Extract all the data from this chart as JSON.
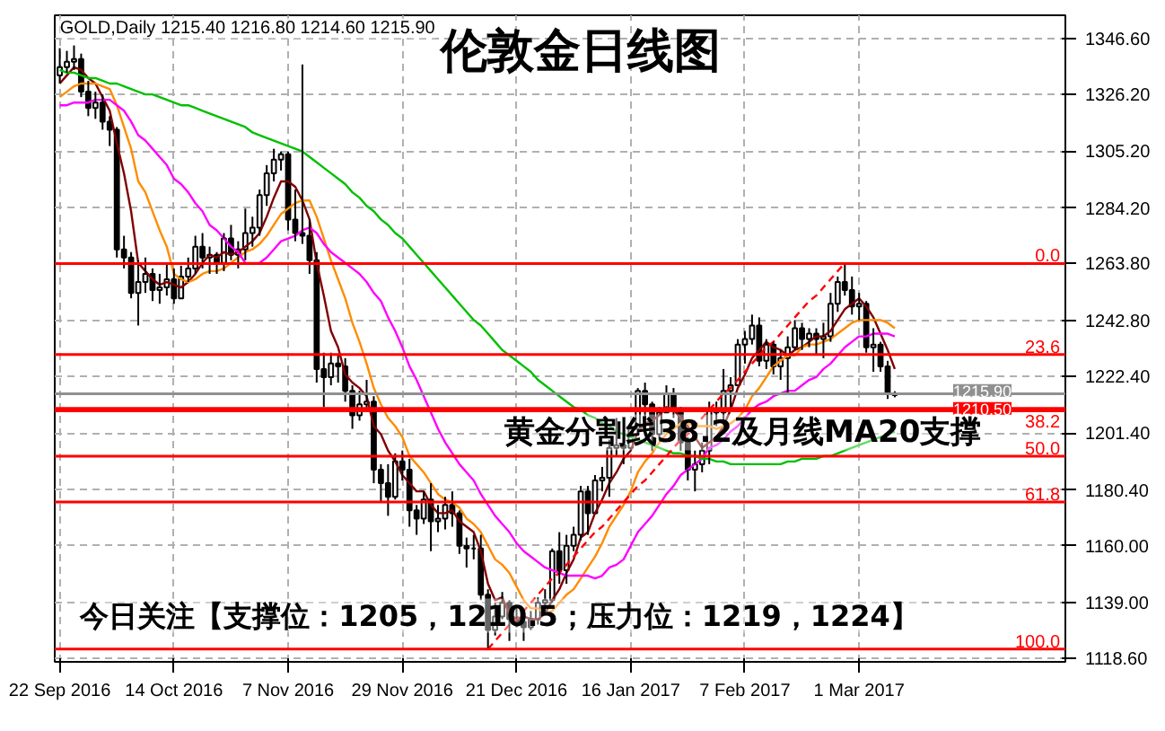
{
  "chart_data": {
    "type": "candlestick",
    "title": "伦敦金日线图",
    "subtitle": "GOLD,Daily 1215.40 1216.80 1214.60 1215.90",
    "annotations": [
      "黄金分割线38.2及月线MA20支撑",
      "今日关注【支撑位：1205，1210.5；压力位：1219，1224】",
      {
        "text": "0.0",
        "y": 1263.8
      },
      {
        "text": "23.6",
        "y": 1230.3
      },
      {
        "text": "38.2",
        "y": 1209.6
      },
      {
        "text": "50.0",
        "y": 1192.9
      },
      {
        "text": "61.8",
        "y": 1176.1
      },
      {
        "text": "100.0",
        "y": 1122.0
      }
    ],
    "categories": [
      "22 Sep 2016",
      null,
      null,
      null,
      null,
      null,
      null,
      null,
      null,
      null,
      null,
      null,
      null,
      null,
      null,
      null,
      "14 Oct 2016",
      null,
      null,
      null,
      null,
      null,
      null,
      null,
      null,
      null,
      null,
      null,
      null,
      null,
      null,
      null,
      "7 Nov 2016",
      null,
      null,
      null,
      null,
      null,
      null,
      null,
      null,
      null,
      null,
      null,
      null,
      null,
      null,
      null,
      "29 Nov 2016",
      null,
      null,
      null,
      null,
      null,
      null,
      null,
      null,
      null,
      null,
      null,
      null,
      null,
      null,
      null,
      "21 Dec 2016",
      null,
      null,
      null,
      null,
      null,
      null,
      null,
      null,
      null,
      null,
      null,
      null,
      null,
      null,
      null,
      "16 Jan 2017",
      null,
      null,
      null,
      null,
      null,
      null,
      null,
      null,
      null,
      null,
      null,
      null,
      null,
      null,
      null,
      "7 Feb 2017",
      null,
      null,
      null,
      null,
      null,
      null,
      null,
      null,
      null,
      null,
      null,
      null,
      null,
      null,
      null,
      "1 Mar 2017",
      null,
      null,
      null,
      null,
      null
    ],
    "color": "#000000",
    "ohlc": [
      [
        1333,
        1343,
        1330,
        1336
      ],
      [
        1336,
        1342,
        1334,
        1338
      ],
      [
        1338,
        1344,
        1335,
        1339
      ],
      [
        1339,
        1341,
        1325,
        1327
      ],
      [
        1327,
        1331,
        1318,
        1321
      ],
      [
        1321,
        1327,
        1317,
        1323
      ],
      [
        1323,
        1326,
        1313,
        1316
      ],
      [
        1316,
        1318,
        1307,
        1313
      ],
      [
        1313,
        1314,
        1266,
        1269
      ],
      [
        1269,
        1274,
        1262,
        1266
      ],
      [
        1266,
        1268,
        1251,
        1253
      ],
      [
        1253,
        1265,
        1241,
        1257
      ],
      [
        1257,
        1266,
        1253,
        1260
      ],
      [
        1260,
        1262,
        1250,
        1254
      ],
      [
        1254,
        1260,
        1249,
        1255
      ],
      [
        1255,
        1264,
        1252,
        1258
      ],
      [
        1258,
        1262,
        1249,
        1251
      ],
      [
        1251,
        1263,
        1251,
        1259
      ],
      [
        1259,
        1266,
        1257,
        1262
      ],
      [
        1262,
        1274,
        1260,
        1270
      ],
      [
        1270,
        1275,
        1262,
        1266
      ],
      [
        1266,
        1270,
        1260,
        1267
      ],
      [
        1267,
        1268,
        1260,
        1264
      ],
      [
        1264,
        1275,
        1261,
        1273
      ],
      [
        1273,
        1278,
        1265,
        1267
      ],
      [
        1267,
        1272,
        1262,
        1269
      ],
      [
        1269,
        1284,
        1265,
        1275
      ],
      [
        1275,
        1281,
        1270,
        1277
      ],
      [
        1277,
        1291,
        1274,
        1289
      ],
      [
        1289,
        1300,
        1285,
        1297
      ],
      [
        1297,
        1306,
        1294,
        1302
      ],
      [
        1302,
        1305,
        1298,
        1304
      ],
      [
        1304,
        1305,
        1276,
        1280
      ],
      [
        1280,
        1291,
        1272,
        1275
      ],
      [
        1275,
        1337,
        1271,
        1274
      ],
      [
        1274,
        1280,
        1260,
        1265
      ],
      [
        1265,
        1268,
        1220,
        1225
      ],
      [
        1225,
        1231,
        1211,
        1222
      ],
      [
        1222,
        1231,
        1219,
        1227
      ],
      [
        1227,
        1230,
        1220,
        1226
      ],
      [
        1226,
        1229,
        1213,
        1217
      ],
      [
        1217,
        1219,
        1203,
        1208
      ],
      [
        1208,
        1217,
        1206,
        1212
      ],
      [
        1212,
        1221,
        1210,
        1213
      ],
      [
        1213,
        1215,
        1183,
        1188
      ],
      [
        1188,
        1190,
        1176,
        1183
      ],
      [
        1183,
        1190,
        1171,
        1178
      ],
      [
        1178,
        1194,
        1177,
        1191
      ],
      [
        1191,
        1195,
        1184,
        1188
      ],
      [
        1188,
        1192,
        1167,
        1173
      ],
      [
        1173,
        1175,
        1164,
        1170
      ],
      [
        1170,
        1180,
        1168,
        1177
      ],
      [
        1177,
        1183,
        1158,
        1169
      ],
      [
        1169,
        1175,
        1165,
        1170
      ],
      [
        1170,
        1178,
        1166,
        1175
      ],
      [
        1175,
        1180,
        1167,
        1172
      ],
      [
        1172,
        1173,
        1157,
        1160
      ],
      [
        1160,
        1163,
        1152,
        1159
      ],
      [
        1159,
        1164,
        1155,
        1159
      ],
      [
        1159,
        1164,
        1140,
        1142
      ],
      [
        1142,
        1144,
        1122,
        1129
      ],
      [
        1129,
        1139,
        1127,
        1134
      ],
      [
        1134,
        1143,
        1133,
        1139
      ],
      [
        1139,
        1140,
        1125,
        1133
      ],
      [
        1133,
        1138,
        1130,
        1132
      ],
      [
        1132,
        1134,
        1125,
        1130
      ],
      [
        1130,
        1136,
        1129,
        1133
      ],
      [
        1133,
        1141,
        1131,
        1139
      ],
      [
        1139,
        1144,
        1136,
        1140
      ],
      [
        1140,
        1159,
        1139,
        1158
      ],
      [
        1158,
        1165,
        1146,
        1151
      ],
      [
        1151,
        1164,
        1146,
        1160
      ],
      [
        1160,
        1167,
        1158,
        1164
      ],
      [
        1164,
        1182,
        1162,
        1180
      ],
      [
        1180,
        1182,
        1164,
        1172
      ],
      [
        1172,
        1186,
        1172,
        1184
      ],
      [
        1184,
        1189,
        1180,
        1185
      ],
      [
        1185,
        1199,
        1178,
        1196
      ],
      [
        1196,
        1207,
        1193,
        1197
      ],
      [
        1197,
        1200,
        1190,
        1196
      ],
      [
        1196,
        1205,
        1195,
        1203
      ],
      [
        1203,
        1218,
        1201,
        1217
      ],
      [
        1217,
        1220,
        1206,
        1212
      ],
      [
        1212,
        1213,
        1195,
        1201
      ],
      [
        1201,
        1211,
        1199,
        1209
      ],
      [
        1209,
        1219,
        1209,
        1216
      ],
      [
        1216,
        1218,
        1207,
        1210
      ],
      [
        1210,
        1211,
        1195,
        1198
      ],
      [
        1198,
        1200,
        1184,
        1188
      ],
      [
        1188,
        1195,
        1180,
        1190
      ],
      [
        1190,
        1198,
        1187,
        1195
      ],
      [
        1195,
        1213,
        1190,
        1210
      ],
      [
        1210,
        1213,
        1204,
        1209
      ],
      [
        1209,
        1225,
        1206,
        1217
      ],
      [
        1217,
        1222,
        1210,
        1219
      ],
      [
        1219,
        1236,
        1219,
        1234
      ],
      [
        1234,
        1239,
        1227,
        1236
      ],
      [
        1236,
        1245,
        1234,
        1241
      ],
      [
        1241,
        1244,
        1226,
        1228
      ],
      [
        1228,
        1236,
        1225,
        1234
      ],
      [
        1234,
        1235,
        1223,
        1226
      ],
      [
        1226,
        1232,
        1221,
        1229
      ],
      [
        1229,
        1237,
        1216,
        1233
      ],
      [
        1233,
        1243,
        1232,
        1240
      ],
      [
        1240,
        1242,
        1232,
        1236
      ],
      [
        1236,
        1240,
        1233,
        1238
      ],
      [
        1238,
        1240,
        1230,
        1236
      ],
      [
        1236,
        1242,
        1229,
        1237
      ],
      [
        1237,
        1253,
        1235,
        1249
      ],
      [
        1249,
        1259,
        1246,
        1257
      ],
      [
        1257,
        1264,
        1252,
        1254
      ],
      [
        1254,
        1259,
        1245,
        1248
      ],
      [
        1248,
        1253,
        1243,
        1249
      ],
      [
        1249,
        1250,
        1231,
        1233
      ],
      [
        1233,
        1240,
        1224,
        1234
      ],
      [
        1234,
        1235,
        1224,
        1226
      ],
      [
        1226,
        1228,
        1214,
        1216
      ],
      [
        1215.4,
        1216.8,
        1214.6,
        1215.9
      ]
    ],
    "series": [
      {
        "type": "line",
        "color": "#800000",
        "line_style": "solid",
        "values": [
          1330,
          1333,
          1336,
          1335,
          1332,
          1330,
          1325,
          1320,
          1308,
          1297,
          1283,
          1264,
          1261,
          1258,
          1256,
          1257,
          1256,
          1255,
          1257,
          1260,
          1264,
          1267,
          1266,
          1268,
          1267,
          1268,
          1270,
          1272,
          1275,
          1281,
          1288,
          1294,
          1294,
          1292,
          1287,
          1280,
          1264,
          1252,
          1239,
          1233,
          1223,
          1220,
          1218,
          1215,
          1204,
          1201,
          1195,
          1191,
          1186,
          1183,
          1180,
          1180,
          1175,
          1172,
          1172,
          1173,
          1169,
          1167,
          1165,
          1158,
          1146,
          1140,
          1141,
          1135,
          1133,
          1134,
          1133,
          1133,
          1135,
          1140,
          1144,
          1150,
          1155,
          1163,
          1165,
          1172,
          1177,
          1183,
          1187,
          1192,
          1195,
          1202,
          1205,
          1206,
          1208,
          1211,
          1210,
          1207,
          1204,
          1200,
          1196,
          1198,
          1200,
          1204,
          1210,
          1218,
          1223,
          1229,
          1232,
          1235,
          1233,
          1232,
          1230,
          1232,
          1233,
          1235,
          1237,
          1237,
          1239,
          1243,
          1247,
          1249,
          1251,
          1248,
          1244,
          1238,
          1232,
          1225
        ]
      },
      {
        "type": "line",
        "color": "#ff8c00",
        "line_style": "solid",
        "values": [
          1325,
          1327,
          1329,
          1330,
          1330,
          1330,
          1329,
          1328,
          1322,
          1314,
          1306,
          1294,
          1290,
          1283,
          1276,
          1270,
          1260,
          1258,
          1257,
          1258,
          1260,
          1261,
          1261,
          1262,
          1264,
          1266,
          1268,
          1269,
          1271,
          1274,
          1278,
          1282,
          1284,
          1286,
          1287,
          1287,
          1281,
          1273,
          1265,
          1258,
          1251,
          1242,
          1235,
          1227,
          1218,
          1212,
          1207,
          1204,
          1200,
          1193,
          1190,
          1187,
          1183,
          1179,
          1177,
          1176,
          1174,
          1170,
          1168,
          1165,
          1160,
          1155,
          1153,
          1150,
          1145,
          1140,
          1137,
          1137,
          1135,
          1136,
          1139,
          1142,
          1144,
          1148,
          1152,
          1156,
          1161,
          1167,
          1171,
          1175,
          1180,
          1187,
          1191,
          1194,
          1198,
          1201,
          1203,
          1205,
          1205,
          1204,
          1204,
          1204,
          1203,
          1204,
          1205,
          1207,
          1210,
          1215,
          1218,
          1222,
          1226,
          1228,
          1230,
          1230,
          1233,
          1234,
          1234,
          1235,
          1236,
          1238,
          1240,
          1242,
          1243,
          1243,
          1243,
          1243,
          1242,
          1240
        ]
      },
      {
        "type": "line",
        "color": "#ff00ff",
        "line_style": "solid",
        "values": [
          1322,
          1322,
          1323,
          1323,
          1323,
          1324,
          1324,
          1324,
          1322,
          1320,
          1316,
          1311,
          1309,
          1306,
          1303,
          1300,
          1295,
          1293,
          1290,
          1286,
          1283,
          1278,
          1276,
          1273,
          1270,
          1268,
          1264,
          1264,
          1264,
          1266,
          1269,
          1272,
          1273,
          1274,
          1276,
          1277,
          1275,
          1271,
          1268,
          1266,
          1264,
          1262,
          1260,
          1257,
          1253,
          1250,
          1244,
          1239,
          1233,
          1226,
          1221,
          1215,
          1209,
          1203,
          1198,
          1194,
          1190,
          1187,
          1184,
          1179,
          1175,
          1171,
          1168,
          1165,
          1161,
          1158,
          1156,
          1154,
          1152,
          1151,
          1150,
          1149,
          1149,
          1149,
          1149,
          1148,
          1149,
          1152,
          1153,
          1155,
          1160,
          1165,
          1168,
          1171,
          1175,
          1179,
          1182,
          1186,
          1188,
          1190,
          1192,
          1196,
          1197,
          1199,
          1202,
          1204,
          1207,
          1210,
          1212,
          1213,
          1215,
          1216,
          1217,
          1217,
          1219,
          1221,
          1222,
          1225,
          1227,
          1230,
          1233,
          1235,
          1237,
          1237,
          1238,
          1238,
          1238,
          1237
        ]
      },
      {
        "type": "line",
        "color": "#00c000",
        "line_style": "solid",
        "values": [
          1335,
          1334,
          1334,
          1333,
          1332,
          1332,
          1331,
          1330,
          1330,
          1329,
          1328,
          1327,
          1326,
          1326,
          1325,
          1324,
          1323,
          1322,
          1322,
          1321,
          1320,
          1319,
          1318,
          1317,
          1316,
          1315,
          1314,
          1312,
          1311,
          1310,
          1309,
          1308,
          1307,
          1306,
          1305,
          1303,
          1301,
          1299,
          1297,
          1295,
          1293,
          1290,
          1288,
          1285,
          1283,
          1280,
          1278,
          1275,
          1273,
          1270,
          1267,
          1264,
          1261,
          1258,
          1255,
          1252,
          1249,
          1246,
          1243,
          1241,
          1238,
          1235,
          1232,
          1230,
          1228,
          1226,
          1224,
          1221,
          1219,
          1217,
          1215,
          1213,
          1211,
          1210,
          1208,
          1207,
          1205,
          1204,
          1202,
          1201,
          1200,
          1199,
          1198,
          1197,
          1196,
          1195,
          1194,
          1194,
          1193,
          1193,
          1192,
          1192,
          1191,
          1191,
          1190,
          1190,
          1190,
          1190,
          1190,
          1190,
          1190,
          1190,
          1191,
          1191,
          1192,
          1192,
          1192,
          1193,
          1193,
          1194,
          1195,
          1196,
          1197,
          1198,
          1199,
          1200,
          1201,
          1202
        ]
      },
      {
        "type": "line",
        "color": "#ff0000",
        "line_style": "dashed",
        "values": [
          null,
          null,
          null,
          null,
          null,
          null,
          null,
          null,
          null,
          null,
          null,
          null,
          null,
          null,
          null,
          null,
          null,
          null,
          null,
          null,
          null,
          null,
          null,
          null,
          null,
          null,
          null,
          null,
          null,
          null,
          null,
          null,
          null,
          null,
          null,
          null,
          null,
          null,
          null,
          null,
          null,
          null,
          null,
          null,
          null,
          null,
          null,
          null,
          null,
          null,
          null,
          null,
          null,
          null,
          null,
          null,
          null,
          null,
          null,
          null,
          1122,
          1125,
          1128,
          1131,
          1133,
          1136,
          1139,
          1142,
          1145,
          1148,
          1150,
          1153,
          1156,
          1159,
          1162,
          1165,
          1167,
          1170,
          1173,
          1176,
          1179,
          1182,
          1184,
          1187,
          1190,
          1193,
          1196,
          1199,
          1201,
          1204,
          1207,
          1210,
          1213,
          1216,
          1218,
          1221,
          1224,
          1227,
          1230,
          1233,
          1235,
          1238,
          1241,
          1244,
          1247,
          1250,
          1252,
          1255,
          1258,
          1261,
          1264,
          null,
          null,
          null,
          null,
          null,
          null,
          null
        ]
      }
    ],
    "ylim": [
      1117.3,
      1355.1
    ],
    "yticks": [
      {
        "value": 1118.6,
        "label": "1118.60"
      },
      {
        "value": 1139.0,
        "label": "1139.00"
      },
      {
        "value": 1160.0,
        "label": "1160.00"
      },
      {
        "value": 1180.4,
        "label": "1180.40"
      },
      {
        "value": 1201.4,
        "label": "1201.40"
      },
      {
        "value": 1222.4,
        "label": "1222.40"
      },
      {
        "value": 1242.8,
        "label": "1242.80"
      },
      {
        "value": 1263.8,
        "label": "1263.80"
      },
      {
        "value": 1284.2,
        "label": "1284.20"
      },
      {
        "value": 1305.2,
        "label": "1305.20"
      },
      {
        "value": 1326.2,
        "label": "1326.20"
      },
      {
        "value": 1346.6,
        "label": "1346.60"
      }
    ],
    "ref_lines": [
      {
        "axis": "y",
        "value": 1263.8,
        "color": "#ff0000"
      },
      {
        "axis": "y",
        "value": 1230.3,
        "color": "#ff0000"
      },
      {
        "axis": "y",
        "value": 1209.6,
        "color": "#ff0000"
      },
      {
        "axis": "y",
        "value": 1192.9,
        "color": "#ff0000"
      },
      {
        "axis": "y",
        "value": 1176.1,
        "color": "#ff0000"
      },
      {
        "axis": "y",
        "value": 1122.0,
        "color": "#ff0000"
      },
      {
        "axis": "y",
        "value": 1210.5,
        "label": "1210.50",
        "color": "#ff0000"
      },
      {
        "axis": "y",
        "value": 1215.9,
        "label": "1215.90",
        "color": "#909090"
      }
    ],
    "grid": true
  }
}
